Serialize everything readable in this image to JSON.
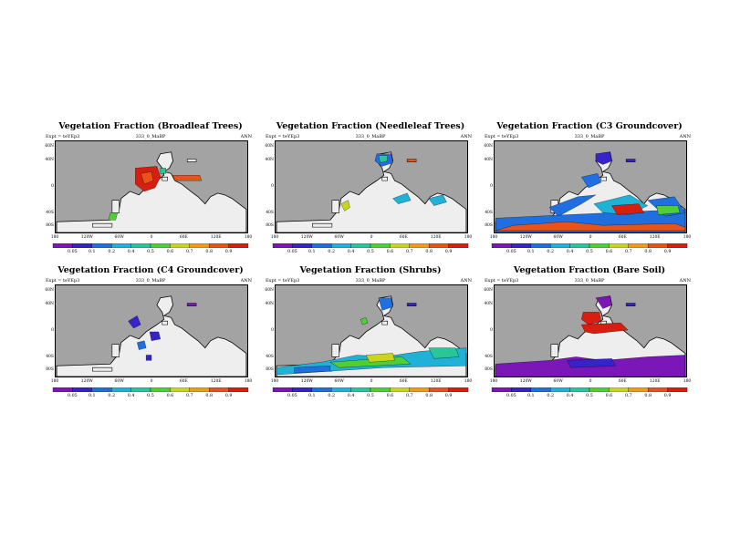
{
  "experiment_label": "Expt = teYEp3",
  "run_label": "333_0_MaBP",
  "season": "ANN",
  "colors": {
    "ocean": "#a3a3a3",
    "land": "#eeeeee",
    "coast": "#000000",
    "colorbar": [
      "#7b16b8",
      "#3624c8",
      "#1f6fe0",
      "#1fb2d6",
      "#27c79a",
      "#4fcf37",
      "#c8d51f",
      "#ee9c17",
      "#e9531a",
      "#d81e10"
    ]
  },
  "lat_labels": [
    "60N",
    "40N",
    "0",
    "40S",
    "80S"
  ],
  "lon_labels": [
    "180",
    "120W",
    "60W",
    "0",
    "60E",
    "120E",
    "180"
  ],
  "panels": [
    {
      "title": "Vegetation Fraction (Broadleaf Trees)",
      "colorbar_ticks": [
        "0.05",
        "0.1",
        "0.2",
        "0.4",
        "0.5",
        "0.6",
        "0.7",
        "0.8",
        "0.9"
      ],
      "vegetation_icon": "broadleaf-tree-fraction-map"
    },
    {
      "title": "Vegetation Fraction (Needleleaf Trees)",
      "colorbar_ticks": [
        "0.05",
        "0.1",
        "0.2",
        "0.4",
        "0.5",
        "0.6",
        "0.7",
        "0.8",
        "0.9"
      ],
      "vegetation_icon": "needleleaf-tree-fraction-map"
    },
    {
      "title": "Vegetation Fraction (C3 Groundcover)",
      "colorbar_ticks": [
        "0.05",
        "0.1",
        "0.2",
        "0.4",
        "0.5",
        "0.6",
        "0.7",
        "0.8",
        "0.9"
      ],
      "vegetation_icon": "c3-groundcover-fraction-map"
    },
    {
      "title": "Vegetation Fraction (C4 Groundcover)",
      "colorbar_ticks": [
        "0.05",
        "0.1",
        "0.2",
        "0.4",
        "0.5",
        "0.6",
        "0.7",
        "0.8",
        "0.9"
      ],
      "vegetation_icon": "c4-groundcover-fraction-map"
    },
    {
      "title": "Vegetation Fraction (Shrubs)",
      "colorbar_ticks": [
        "0.05",
        "0.1",
        "0.2",
        "0.4",
        "0.5",
        "0.6",
        "0.7",
        "0.8",
        "0.9"
      ],
      "vegetation_icon": "shrub-fraction-map"
    },
    {
      "title": "Vegetation Fraction (Bare Soil)",
      "colorbar_ticks": [
        "0.05",
        "0.1",
        "0.2",
        "0.4",
        "0.5",
        "0.6",
        "0.7",
        "0.8",
        "0.9"
      ],
      "vegetation_icon": "bare-soil-fraction-map"
    }
  ]
}
